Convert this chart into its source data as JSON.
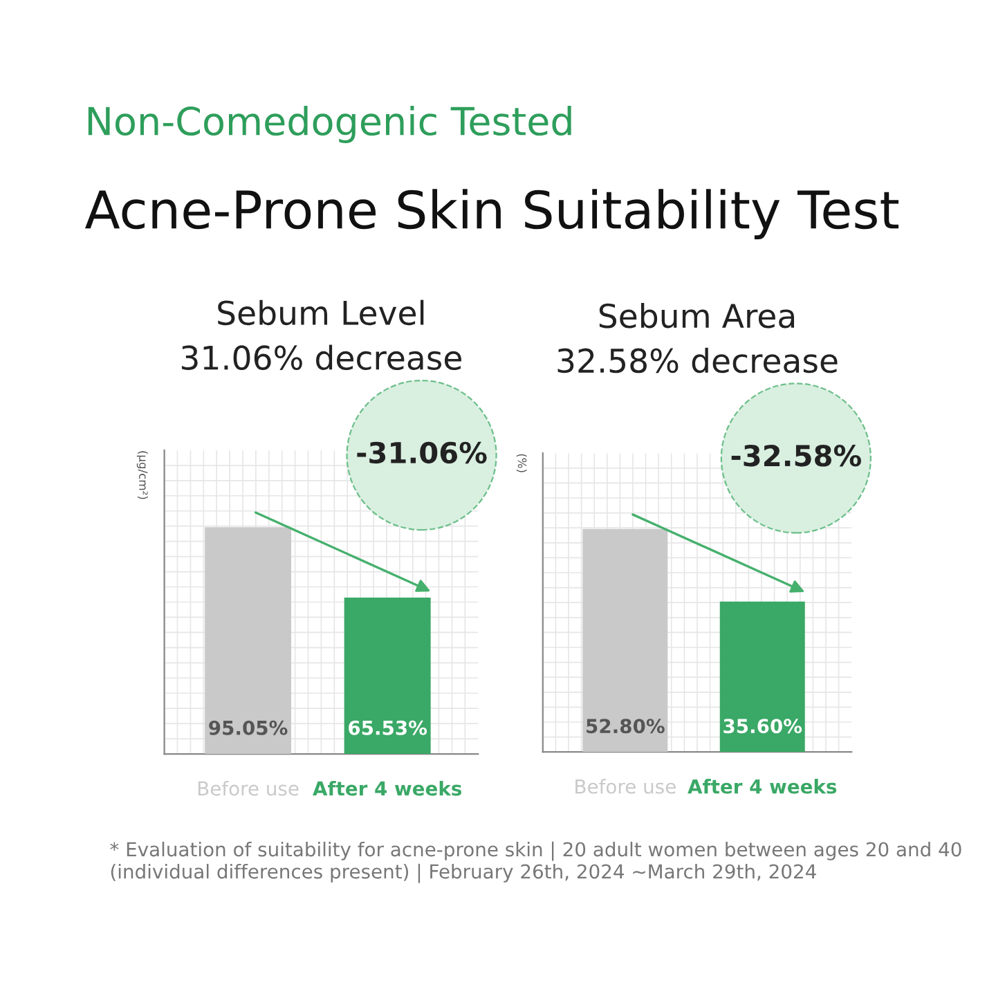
{
  "chart_data": [
    {
      "type": "bar",
      "title": "Sebum Level",
      "subtitle": "31.06% decrease",
      "ylabel": "(μg/cm²)",
      "categories": [
        "Before use",
        "After 4 weeks"
      ],
      "values": [
        95.05,
        65.53
      ],
      "colors": [
        "#c9c9c9",
        "#3aa866"
      ],
      "value_labels": [
        "95.05%",
        "65.53%"
      ],
      "tick_labels": "x",
      "grid": true,
      "annotations": [
        "Non-Comedogenic Tested",
        "Acne-Prone Skin Suitability Test",
        "-31.06%"
      ]
    },
    {
      "type": "bar",
      "title": "Sebum Area",
      "subtitle": "32.58% decrease",
      "ylabel": "(%)",
      "categories": [
        "Before use",
        "After 4 weeks"
      ],
      "values": [
        52.8,
        35.6
      ],
      "colors": [
        "#c9c9c9",
        "#3aa866"
      ],
      "value_labels": [
        "52.80%",
        "35.60%"
      ],
      "tick_labels": "x",
      "grid": true,
      "annotations": [
        "-32.58%",
        "* Evaluation of suitability for acne-prone skin | 20 adult women between ages 20 and 40 (individual differences present) | February 26th, 2024 ~March 29th, 2024"
      ]
    }
  ]
}
